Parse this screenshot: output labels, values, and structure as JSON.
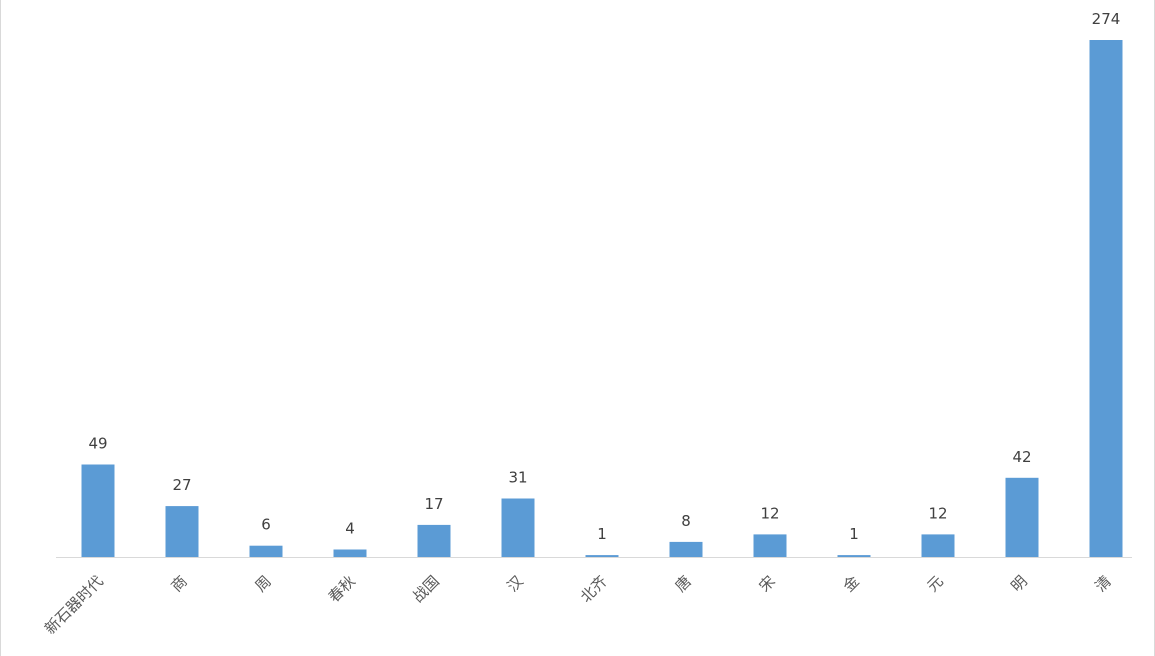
{
  "chart_data": {
    "type": "bar",
    "categories": [
      "新石器时代",
      "商",
      "周",
      "春秋",
      "战国",
      "汉",
      "北齐",
      "唐",
      "宋",
      "金",
      "元",
      "明",
      "清"
    ],
    "values": [
      49,
      27,
      6,
      4,
      17,
      31,
      1,
      8,
      12,
      1,
      12,
      42,
      274
    ],
    "title": "",
    "xlabel": "",
    "ylabel": "",
    "ylim": [
      0,
      274
    ],
    "grid": false,
    "data_labels": true,
    "x_tick_rotation": -45,
    "colors": {
      "bar": "#5b9bd5",
      "axis": "#d9d9d9",
      "label": "#404040"
    }
  }
}
